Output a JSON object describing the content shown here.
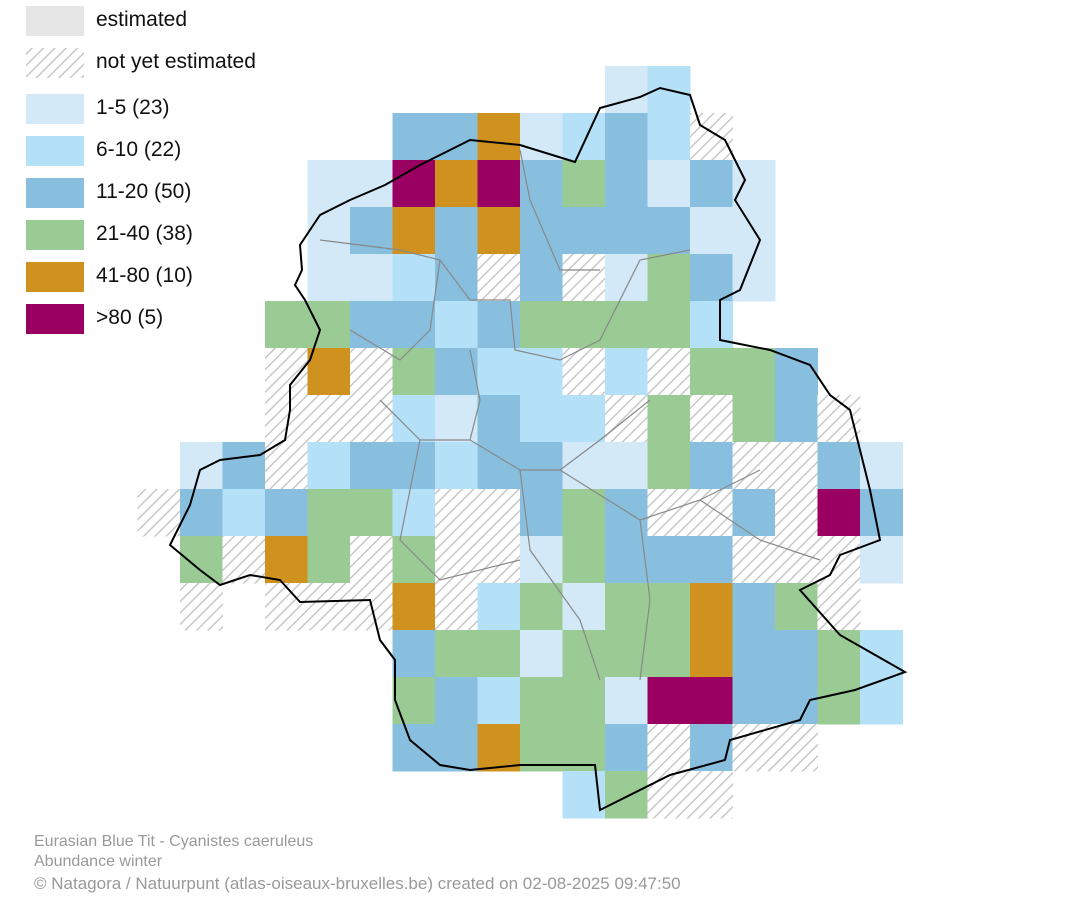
{
  "legend": [
    {
      "label": "estimated",
      "color": "#e6e6e6"
    },
    {
      "label": "not yet estimated",
      "color": "hatch"
    },
    {
      "label": "1-5 (23)",
      "color": "#d4e9f8"
    },
    {
      "label": "6-10 (22)",
      "color": "#b5e1f8"
    },
    {
      "label": "11-20 (50)",
      "color": "#88bfdf"
    },
    {
      "label": "21-40 (38)",
      "color": "#9bcb94"
    },
    {
      "label": "41-80 (10)",
      "color": "#cf921e"
    },
    {
      "label": ">80 (5)",
      "color": "#990061"
    }
  ],
  "caption": {
    "species": "Eurasian Blue Tit - Cyanistes caeruleus",
    "subtitle": "Abundance winter",
    "credit": "© Natagora / Natuurpunt (atlas-oiseaux-bruxelles.be) created on 02-08-2025 09:47:50"
  }
}
